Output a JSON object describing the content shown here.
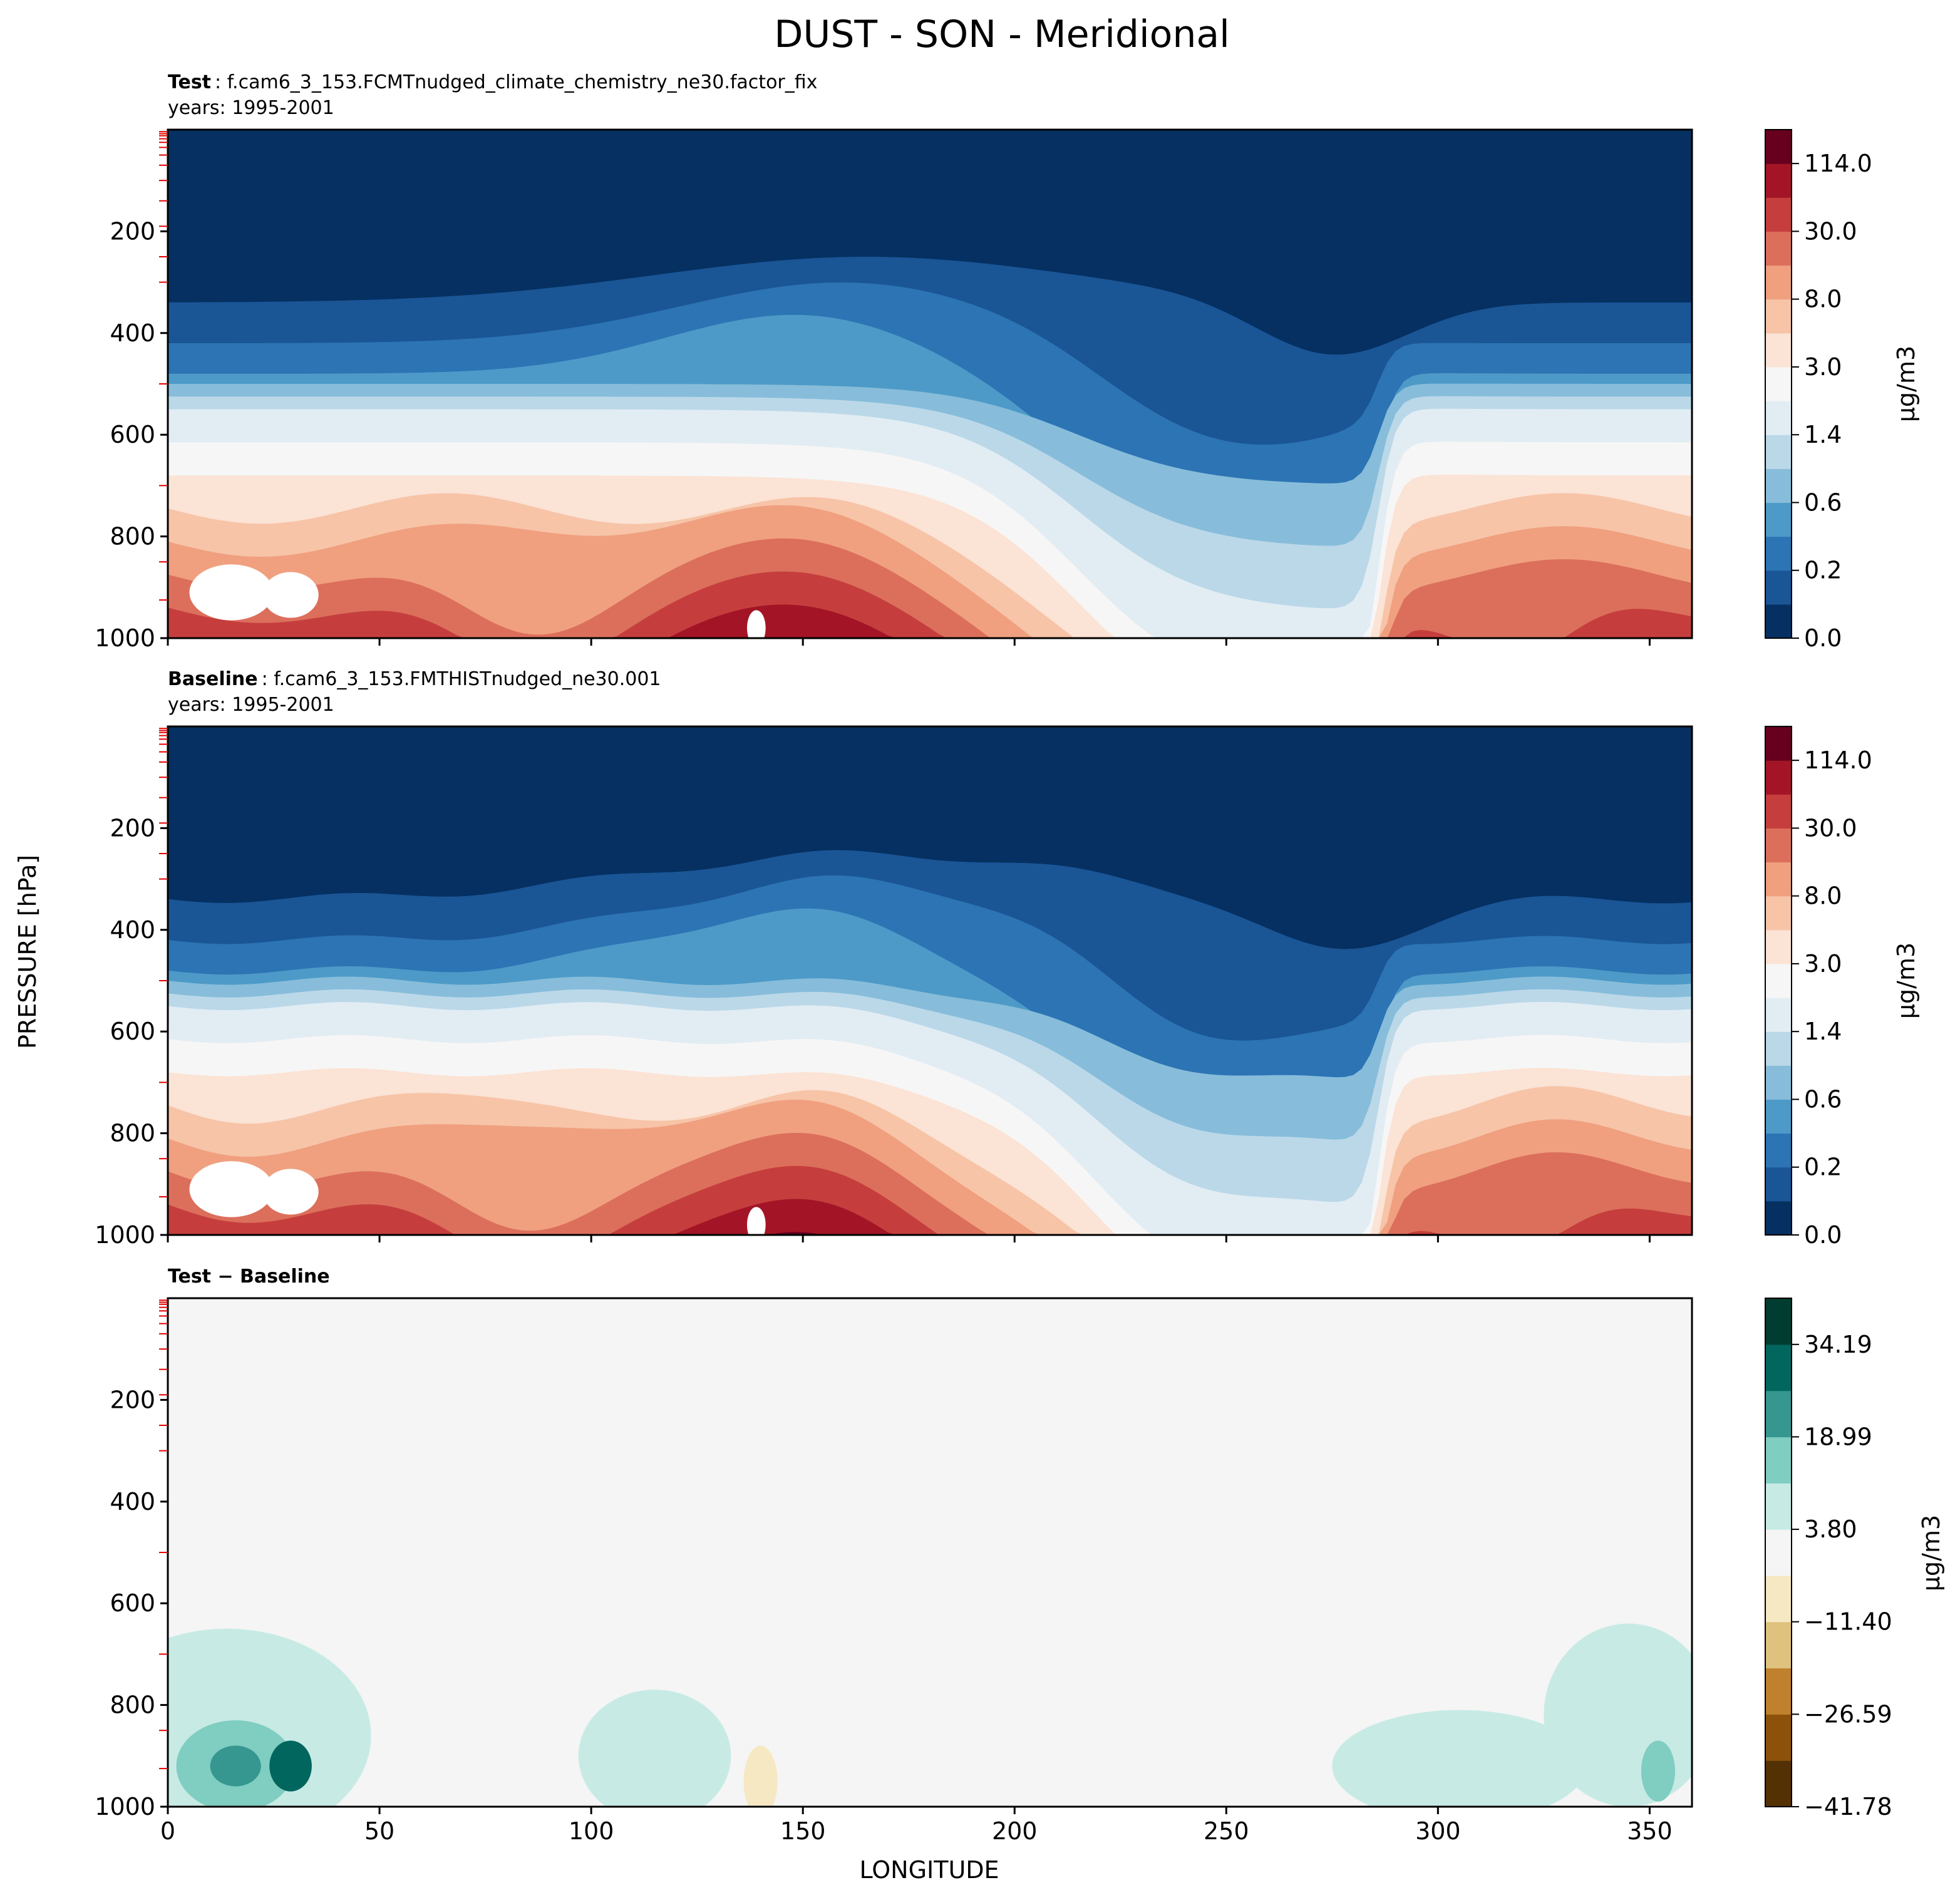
{
  "figure": {
    "title": "DUST - SON - Meridional",
    "ylabel": "PRESSURE [hPa]",
    "xlabel": "LONGITUDE"
  },
  "colors": {
    "rdbu": [
      "#053061",
      "#1a5596",
      "#2c74b4",
      "#4d9ac8",
      "#87bdda",
      "#bbd8e9",
      "#e2edf3",
      "#f7f6f6",
      "#fbe3d5",
      "#f7c4a8",
      "#f0a07f",
      "#dc6f5c",
      "#c53e3d",
      "#a31526",
      "#67001f"
    ],
    "brbg": [
      "#543005",
      "#8c510a",
      "#bf812d",
      "#dfc27d",
      "#f6e8c3",
      "#f5f5f5",
      "#c7eae5",
      "#80cdc1",
      "#35978f",
      "#01665e",
      "#003c30"
    ]
  },
  "panels": [
    {
      "label_bold": "Test",
      "label_rest": ": f.cam6_3_153.FCMTnudged_climate_chemistry_ne30.factor_fix",
      "years": "years: 1995-2001",
      "colorbar_unit": "μg/m3",
      "colorbar_ticks": [
        "114.0",
        "30.0",
        "8.0",
        "3.0",
        "1.4",
        "0.6",
        "0.2",
        "0.0"
      ]
    },
    {
      "label_bold": "Baseline",
      "label_rest": ": f.cam6_3_153.FMTHISTnudged_ne30.001",
      "years": "years: 1995-2001",
      "colorbar_unit": "μg/m3",
      "colorbar_ticks": [
        "114.0",
        "30.0",
        "8.0",
        "3.0",
        "1.4",
        "0.6",
        "0.2",
        "0.0"
      ]
    },
    {
      "label_bold": "Test − Baseline",
      "label_rest": "",
      "years": "",
      "colorbar_unit": "μg/m3",
      "colorbar_ticks": [
        "34.19",
        "18.99",
        "3.80",
        "−11.40",
        "−26.59",
        "−41.78"
      ]
    }
  ],
  "chart_data": {
    "type": "heatmap",
    "title": "DUST - SON - Meridional",
    "xlabel": "LONGITUDE",
    "ylabel": "PRESSURE [hPa]",
    "xlim": [
      0,
      360
    ],
    "ylim": [
      1000,
      0
    ],
    "x_ticks": [
      "0",
      "50",
      "100",
      "150",
      "200",
      "250",
      "300",
      "350"
    ],
    "y_ticks": [
      "200",
      "400",
      "600",
      "800",
      "1000"
    ],
    "x_tick_values": [
      0,
      50,
      100,
      150,
      200,
      250,
      300,
      350
    ],
    "y_tick_values": [
      200,
      400,
      600,
      800,
      1000
    ],
    "colorbar_levels_mean": [
      0.0,
      0.2,
      0.6,
      1.4,
      3.0,
      8.0,
      30.0,
      114.0
    ],
    "colorbar_levels_diff": [
      -41.78,
      -26.59,
      -11.4,
      3.8,
      18.99,
      34.19
    ]
  }
}
